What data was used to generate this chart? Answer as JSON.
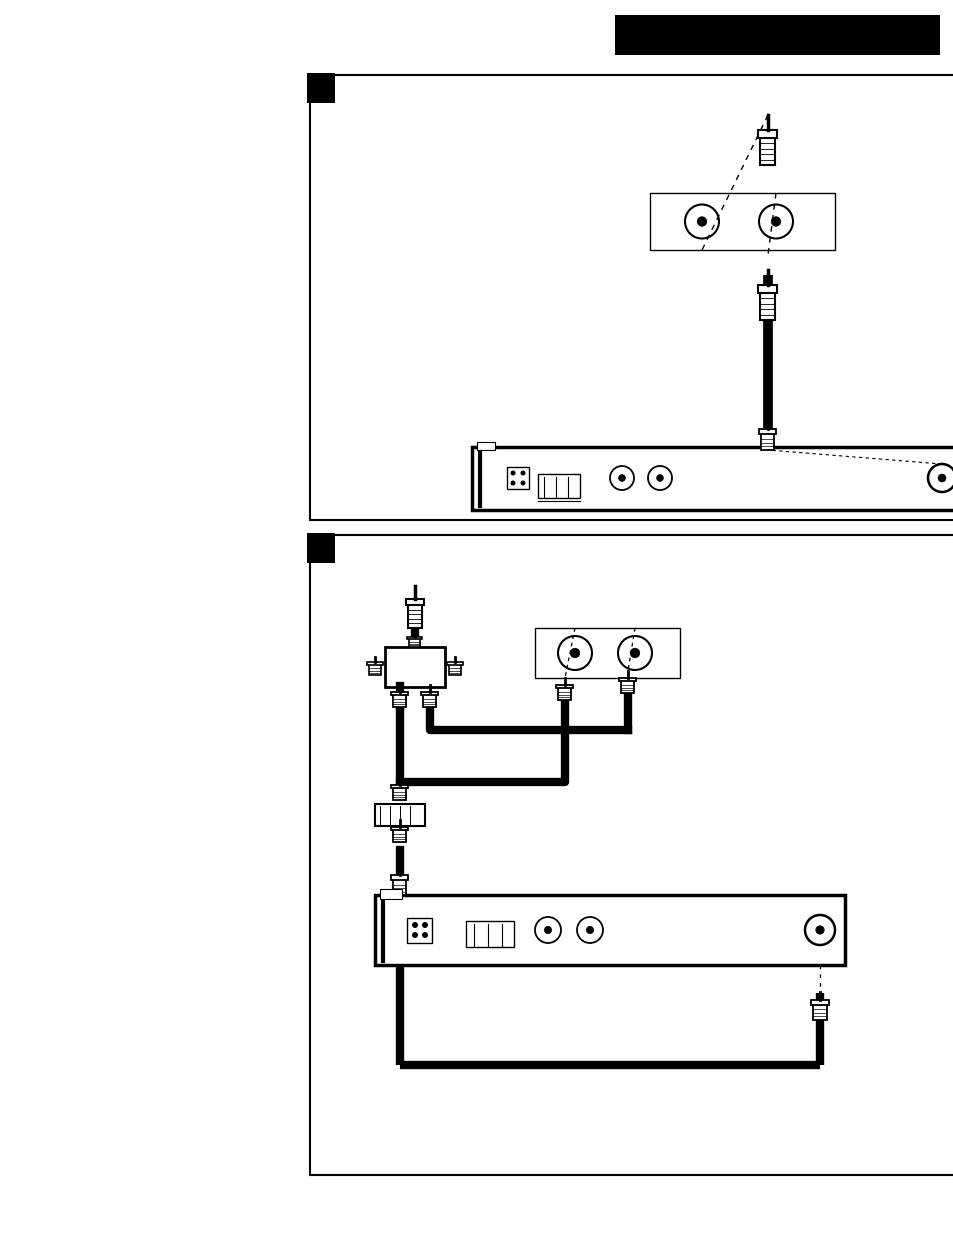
{
  "bg_color": "#ffffff",
  "page_width": 9.54,
  "page_height": 12.35,
  "dpi": 100
}
